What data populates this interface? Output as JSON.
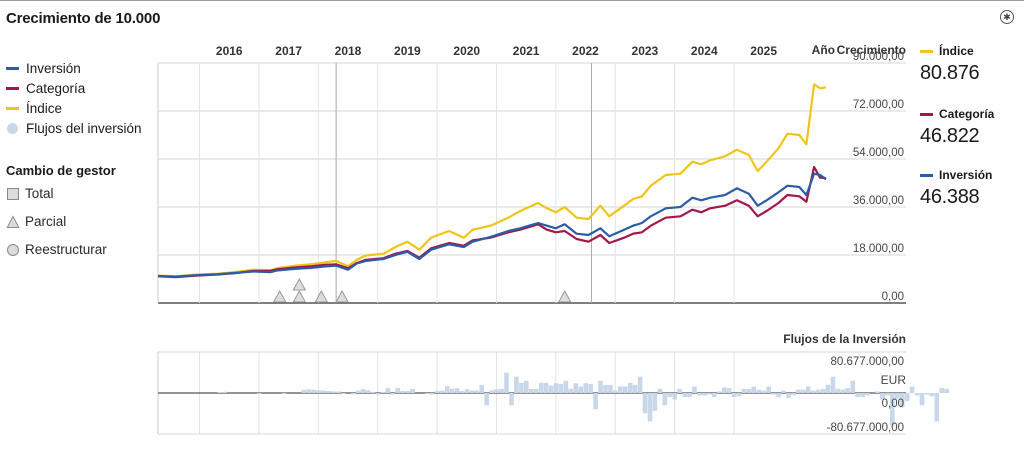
{
  "page": {
    "title": "Crecimiento de 10.000"
  },
  "legend": {
    "items": [
      {
        "label": "Inversión",
        "color": "#2b5da6"
      },
      {
        "label": "Categoría",
        "color": "#a3174a"
      },
      {
        "label": "Índice",
        "color": "#f0c419"
      },
      {
        "label": "Flujos del inversión",
        "color": "#c9d7ea"
      }
    ]
  },
  "manager_change": {
    "title": "Cambio de gestor",
    "items": [
      {
        "label": "Total",
        "icon": "square-icon"
      },
      {
        "label": "Parcial",
        "icon": "triangle-icon"
      },
      {
        "label": "Reestructurar",
        "icon": "circle-icon"
      }
    ]
  },
  "summary": [
    {
      "label": "Índice",
      "value": "80.876",
      "color": "#f0c419"
    },
    {
      "label": "Categoría",
      "value": "46.822",
      "color": "#a3174a"
    },
    {
      "label": "Inversión",
      "value": "46.388",
      "color": "#2b5da6"
    }
  ],
  "chart_data": [
    {
      "type": "line",
      "title": "",
      "xlabel": "Año",
      "ylabel": "Crecimiento",
      "x_tick_labels": [
        "2016",
        "2017",
        "2018",
        "2019",
        "2020",
        "2021",
        "2022",
        "2023",
        "2024",
        "2025"
      ],
      "xlim": [
        2015.0,
        2026.25
      ],
      "y_tick_labels": [
        "90.000,00",
        "72.000,00",
        "54.000,00",
        "36.000,00",
        "18.000,00",
        "0,00"
      ],
      "y_ticks": [
        90000,
        72000,
        54000,
        36000,
        18000,
        0
      ],
      "ylim": [
        0,
        90000
      ],
      "grid": true,
      "series": [
        {
          "name": "Índice",
          "color": "#f0c419",
          "points": [
            [
              2015.0,
              10300
            ],
            [
              2015.3,
              10000
            ],
            [
              2015.6,
              10600
            ],
            [
              2016.0,
              11000
            ],
            [
              2016.3,
              11600
            ],
            [
              2016.6,
              12500
            ],
            [
              2016.9,
              12300
            ],
            [
              2017.0,
              13000
            ],
            [
              2017.3,
              14000
            ],
            [
              2017.6,
              14600
            ],
            [
              2017.8,
              15200
            ],
            [
              2018.0,
              15800
            ],
            [
              2018.2,
              13800
            ],
            [
              2018.35,
              16200
            ],
            [
              2018.5,
              17800
            ],
            [
              2018.8,
              18500
            ],
            [
              2019.0,
              21000
            ],
            [
              2019.2,
              23000
            ],
            [
              2019.4,
              20000
            ],
            [
              2019.6,
              24500
            ],
            [
              2019.9,
              27000
            ],
            [
              2020.15,
              24500
            ],
            [
              2020.3,
              27500
            ],
            [
              2020.6,
              29000
            ],
            [
              2020.9,
              32000
            ],
            [
              2021.1,
              34500
            ],
            [
              2021.4,
              37500
            ],
            [
              2021.55,
              35500
            ],
            [
              2021.7,
              34000
            ],
            [
              2021.85,
              36000
            ],
            [
              2022.05,
              32000
            ],
            [
              2022.25,
              31500
            ],
            [
              2022.45,
              36500
            ],
            [
              2022.6,
              32500
            ],
            [
              2022.85,
              36500
            ],
            [
              2023.0,
              39000
            ],
            [
              2023.15,
              40000
            ],
            [
              2023.3,
              44000
            ],
            [
              2023.55,
              48000
            ],
            [
              2023.8,
              48500
            ],
            [
              2024.0,
              53000
            ],
            [
              2024.15,
              52000
            ],
            [
              2024.3,
              53500
            ],
            [
              2024.55,
              55000
            ],
            [
              2024.75,
              57500
            ],
            [
              2024.95,
              55500
            ],
            [
              2025.1,
              49500
            ],
            [
              2025.25,
              53000
            ],
            [
              2025.45,
              58000
            ],
            [
              2025.6,
              63500
            ],
            [
              2025.8,
              63000
            ],
            [
              2025.92,
              59500
            ],
            [
              2026.05,
              82000
            ],
            [
              2026.15,
              80500
            ],
            [
              2026.25,
              80876
            ]
          ]
        },
        {
          "name": "Categoría",
          "color": "#a3174a",
          "points": [
            [
              2015.0,
              10000
            ],
            [
              2015.3,
              9700
            ],
            [
              2015.6,
              10200
            ],
            [
              2016.0,
              10700
            ],
            [
              2016.3,
              11200
            ],
            [
              2016.6,
              12000
            ],
            [
              2016.9,
              12100
            ],
            [
              2017.0,
              12600
            ],
            [
              2017.3,
              13300
            ],
            [
              2017.6,
              13800
            ],
            [
              2017.8,
              14300
            ],
            [
              2018.0,
              14500
            ],
            [
              2018.2,
              13000
            ],
            [
              2018.35,
              15000
            ],
            [
              2018.5,
              16200
            ],
            [
              2018.8,
              16800
            ],
            [
              2019.0,
              18500
            ],
            [
              2019.2,
              19500
            ],
            [
              2019.4,
              17000
            ],
            [
              2019.6,
              20500
            ],
            [
              2019.9,
              22500
            ],
            [
              2020.15,
              21500
            ],
            [
              2020.3,
              23500
            ],
            [
              2020.6,
              24500
            ],
            [
              2020.9,
              26500
            ],
            [
              2021.1,
              27500
            ],
            [
              2021.4,
              29500
            ],
            [
              2021.55,
              27500
            ],
            [
              2021.7,
              26500
            ],
            [
              2021.85,
              27000
            ],
            [
              2022.05,
              24000
            ],
            [
              2022.25,
              23000
            ],
            [
              2022.45,
              25500
            ],
            [
              2022.6,
              22500
            ],
            [
              2022.85,
              24500
            ],
            [
              2023.0,
              26000
            ],
            [
              2023.15,
              26500
            ],
            [
              2023.3,
              29000
            ],
            [
              2023.55,
              32000
            ],
            [
              2023.8,
              32500
            ],
            [
              2024.0,
              35000
            ],
            [
              2024.15,
              34000
            ],
            [
              2024.3,
              35500
            ],
            [
              2024.55,
              36500
            ],
            [
              2024.75,
              38500
            ],
            [
              2024.95,
              36500
            ],
            [
              2025.1,
              32500
            ],
            [
              2025.25,
              34500
            ],
            [
              2025.45,
              37500
            ],
            [
              2025.6,
              40500
            ],
            [
              2025.8,
              40000
            ],
            [
              2025.92,
              38000
            ],
            [
              2026.05,
              51000
            ],
            [
              2026.15,
              47000
            ],
            [
              2026.25,
              46822
            ]
          ]
        },
        {
          "name": "Inversión",
          "color": "#2b5da6",
          "points": [
            [
              2015.0,
              10100
            ],
            [
              2015.3,
              9900
            ],
            [
              2015.6,
              10400
            ],
            [
              2016.0,
              10800
            ],
            [
              2016.3,
              11300
            ],
            [
              2016.6,
              11800
            ],
            [
              2016.9,
              11600
            ],
            [
              2017.0,
              12200
            ],
            [
              2017.3,
              12800
            ],
            [
              2017.6,
              13200
            ],
            [
              2017.8,
              13700
            ],
            [
              2018.0,
              14000
            ],
            [
              2018.2,
              12500
            ],
            [
              2018.35,
              14800
            ],
            [
              2018.5,
              15800
            ],
            [
              2018.8,
              16500
            ],
            [
              2019.0,
              18000
            ],
            [
              2019.2,
              19200
            ],
            [
              2019.4,
              16500
            ],
            [
              2019.6,
              20000
            ],
            [
              2019.9,
              22000
            ],
            [
              2020.15,
              21000
            ],
            [
              2020.3,
              23000
            ],
            [
              2020.6,
              24800
            ],
            [
              2020.9,
              27000
            ],
            [
              2021.1,
              28000
            ],
            [
              2021.4,
              30000
            ],
            [
              2021.55,
              29000
            ],
            [
              2021.7,
              28000
            ],
            [
              2021.85,
              29500
            ],
            [
              2022.05,
              26000
            ],
            [
              2022.25,
              25500
            ],
            [
              2022.45,
              28000
            ],
            [
              2022.6,
              25000
            ],
            [
              2022.85,
              27500
            ],
            [
              2023.0,
              29000
            ],
            [
              2023.15,
              30000
            ],
            [
              2023.3,
              32500
            ],
            [
              2023.55,
              35500
            ],
            [
              2023.8,
              36000
            ],
            [
              2024.0,
              39500
            ],
            [
              2024.15,
              38500
            ],
            [
              2024.3,
              39500
            ],
            [
              2024.55,
              40500
            ],
            [
              2024.75,
              43000
            ],
            [
              2024.95,
              41000
            ],
            [
              2025.1,
              36500
            ],
            [
              2025.25,
              38500
            ],
            [
              2025.45,
              41500
            ],
            [
              2025.6,
              44000
            ],
            [
              2025.8,
              43500
            ],
            [
              2025.92,
              40500
            ],
            [
              2026.05,
              48500
            ],
            [
              2026.15,
              48000
            ],
            [
              2026.25,
              46388
            ]
          ]
        }
      ],
      "manager_changes": [
        {
          "x": 2017.05,
          "type": "Parcial"
        },
        {
          "x": 2017.38,
          "type": "Parcial"
        },
        {
          "x": 2017.38,
          "type": "Parcial"
        },
        {
          "x": 2017.75,
          "type": "Parcial"
        },
        {
          "x": 2018.1,
          "type": "Parcial"
        },
        {
          "x": 2021.85,
          "type": "Parcial"
        }
      ]
    },
    {
      "type": "bar",
      "title": "Flujos de la Inversión",
      "ylabel": "EUR",
      "y_tick_labels": [
        "80.677.000,00",
        "0,00",
        "-80.677.000,00"
      ],
      "y_ticks": [
        80677000,
        0,
        -80677000
      ],
      "ylim": [
        -80677000,
        80677000
      ],
      "series": [
        {
          "name": "Flujos del inversión",
          "color": "#c9d7ea",
          "x_start": 2015.0,
          "x_step": 0.0833,
          "values": [
            0,
            0,
            0,
            0,
            0,
            0,
            0,
            0,
            0,
            0,
            0,
            0,
            1000000,
            1500000,
            0,
            0,
            0,
            0,
            0,
            0,
            -1000000,
            0,
            0,
            0,
            0,
            -1000000,
            0,
            0,
            0,
            4000000,
            4500000,
            4000000,
            3500000,
            3000000,
            2500000,
            2000000,
            2000000,
            -1000000,
            0,
            -1500000,
            3000000,
            5000000,
            3500000,
            1000000,
            -2000000,
            1500000,
            6000000,
            -2000000,
            6000000,
            2500000,
            2500000,
            5000000,
            0,
            0,
            -1500000,
            -2000000,
            2500000,
            3000000,
            8500000,
            5000000,
            6000000,
            2500000,
            4500000,
            3000000,
            3000000,
            10000000,
            -15000000,
            3500000,
            4500000,
            5000000,
            25000000,
            -15000000,
            20000000,
            12500000,
            15000000,
            5000000,
            5000000,
            12500000,
            12500000,
            9000000,
            12000000,
            11000000,
            15000000,
            5000000,
            12000000,
            8000000,
            12000000,
            11000000,
            -20000000,
            15000000,
            10000000,
            10000000,
            3000000,
            8000000,
            8000000,
            12500000,
            10000000,
            20000000,
            -25000000,
            -35000000,
            -22000000,
            5000000,
            -15000000,
            -5000000,
            -8000000,
            5000000,
            -5000000,
            -5000000,
            8000000,
            -3000000,
            -3000000,
            -2000000,
            -5000000,
            2000000,
            7000000,
            6000000,
            -5000000,
            -4000000,
            5000000,
            5000000,
            8000000,
            4000000,
            3000000,
            8000000,
            -2000000,
            -5000000,
            3000000,
            -6000000,
            -3000000,
            4000000,
            4000000,
            8000000,
            3000000,
            4000000,
            5000000,
            10000000,
            20000000,
            5000000,
            4000000,
            6000000,
            15000000,
            -5000000,
            -5000000,
            -3000000,
            0,
            2000000,
            -8000000,
            -3000000,
            -40000000,
            -7000000,
            -18000000,
            -10000000,
            8000000,
            -3000000,
            -15000000,
            -2000000,
            -4000000,
            -35000000,
            6000000,
            5000000,
            0,
            0
          ]
        }
      ]
    }
  ]
}
